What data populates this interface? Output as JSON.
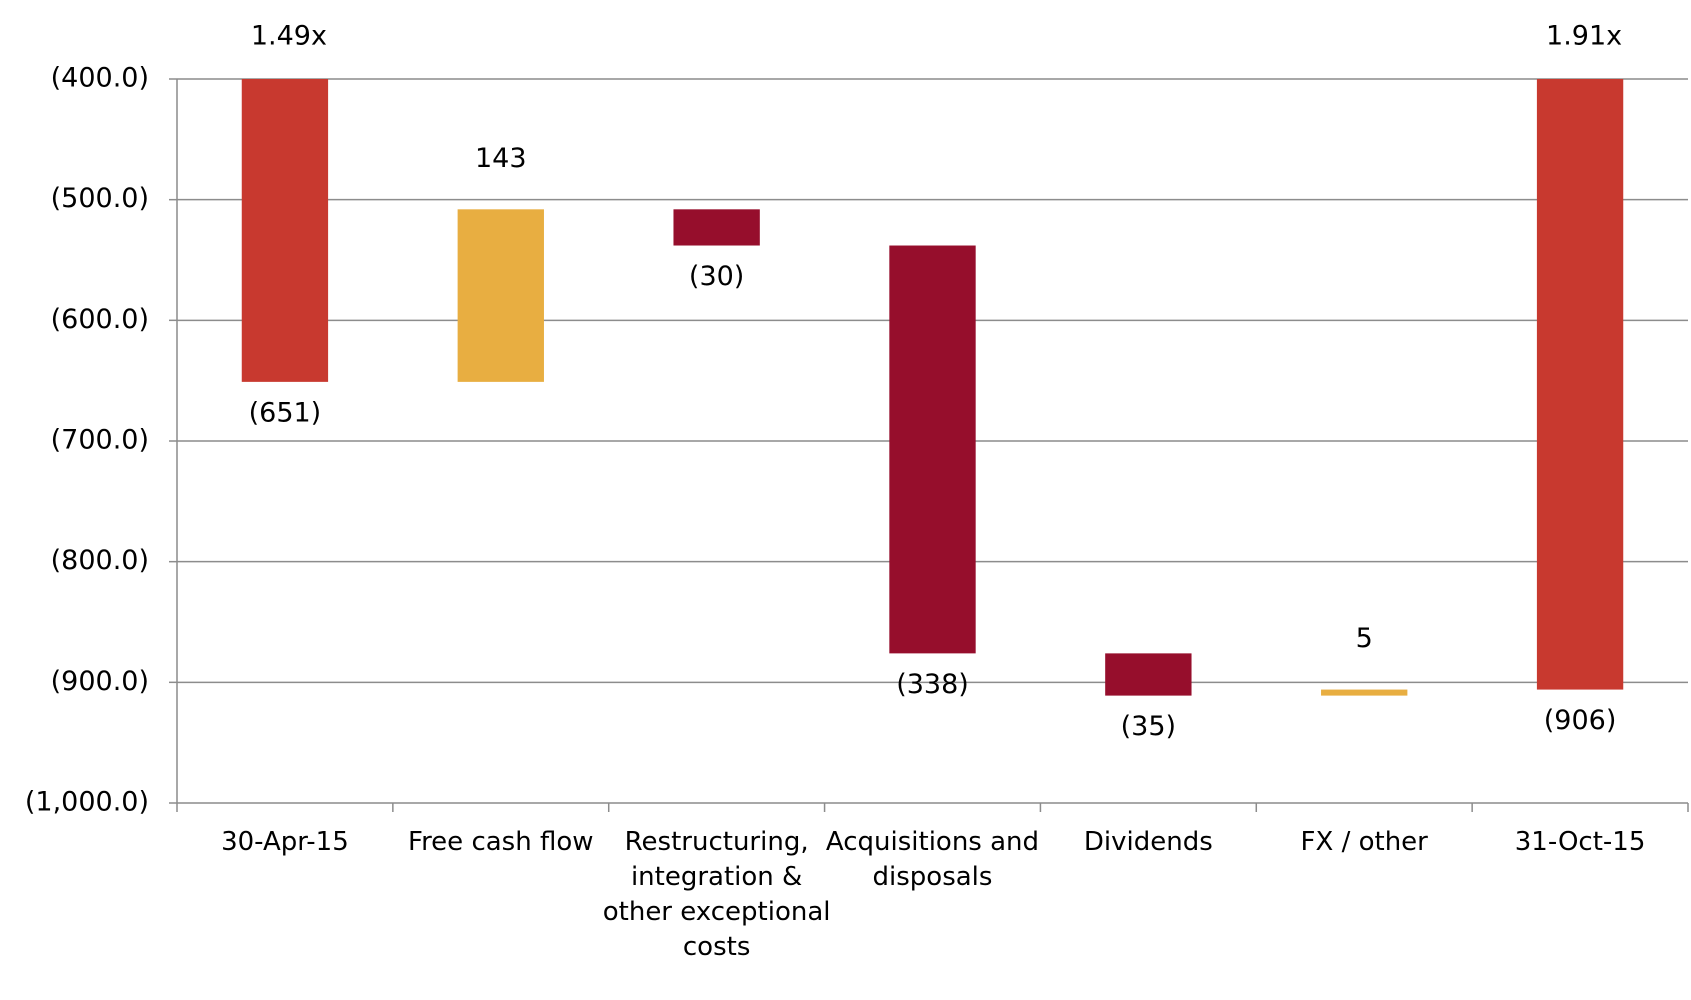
{
  "chart_data": {
    "type": "waterfall",
    "categories": [
      "30-Apr-15",
      "Free cash flow",
      "Restructuring, integration & other exceptional costs",
      "Acquisitions and disposals",
      "Dividends",
      "FX / other",
      "31-Oct-15"
    ],
    "measure": [
      "total",
      "relative",
      "relative",
      "relative",
      "relative",
      "relative",
      "total"
    ],
    "values": [
      -651,
      143,
      -30,
      -338,
      -35,
      5,
      -906
    ],
    "value_labels": [
      "(651)",
      "143",
      "(30)",
      "(338)",
      "(35)",
      "5",
      "(906)"
    ],
    "annotations": [
      "1.49x",
      null,
      null,
      null,
      null,
      null,
      "1.91x"
    ],
    "total_color": "#c8392f",
    "increase_color": "#e8ae41",
    "decrease_color": "#960e2c",
    "ylim": [
      -1000,
      -400
    ],
    "yticks": [
      {
        "value": -1000,
        "label": "(1,000.0)"
      },
      {
        "value": -900,
        "label": "(900.0)"
      },
      {
        "value": -800,
        "label": "(800.0)"
      },
      {
        "value": -700,
        "label": "(700.0)"
      },
      {
        "value": -600,
        "label": "(600.0)"
      },
      {
        "value": -500,
        "label": "(500.0)"
      },
      {
        "value": -400,
        "label": "(400.0)"
      }
    ],
    "grid": true
  }
}
